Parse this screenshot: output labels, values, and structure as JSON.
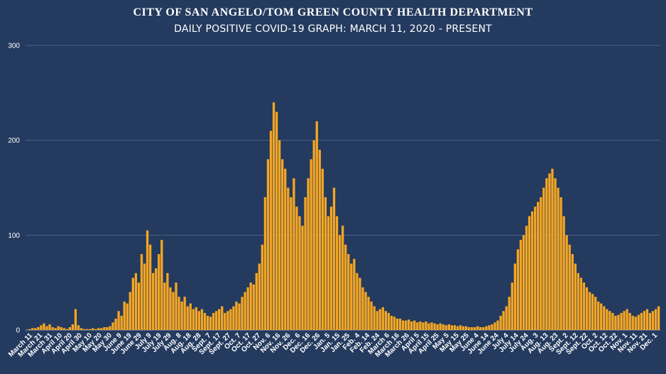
{
  "chart_data": {
    "type": "bar",
    "title": "CITY OF SAN ANGELO/TOM GREEN COUNTY HEALTH DEPARTMENT",
    "subtitle": "DAILY POSITIVE COVID-19 GRAPH: MARCH 11, 2020 - PRESENT",
    "xlabel": "",
    "ylabel": "",
    "ylim": [
      0,
      300
    ],
    "yticks": [
      0,
      100,
      200,
      300
    ],
    "grid": true,
    "x_tick_labels": [
      "March 11",
      "March 21",
      "March 31",
      "April 10",
      "April 20",
      "April 30",
      "May 10",
      "May 20",
      "May 30",
      "June 9",
      "June 19",
      "June 29",
      "July 9",
      "July 19",
      "July 29",
      "Aug. 8",
      "Aug. 18",
      "Aug. 28",
      "Sept. 7",
      "Sept. 17",
      "Sept. 27",
      "Oct. 7",
      "Oct. 17",
      "Oct. 27",
      "Nov. 6",
      "Nov. 16",
      "Nov. 26",
      "Dec. 6",
      "Dec. 16",
      "Dec. 26",
      "Jan. 5",
      "Jan. 15",
      "Jan. 25",
      "Feb. 4",
      "Feb. 14",
      "Feb. 24",
      "March 6",
      "March 16",
      "March 26",
      "April 5",
      "April 15",
      "April 25",
      "May 5",
      "May 15",
      "May 25",
      "June 4",
      "June 14",
      "June 24",
      "July 4",
      "July 14",
      "July 24",
      "Aug. 3",
      "Aug. 13",
      "Aug. 23",
      "Sept. 2",
      "Sept. 12",
      "Sept. 22",
      "Oct. 2",
      "Oct. 12",
      "Oct. 22",
      "Nov. 1",
      "Nov. 11",
      "Nov. 21",
      "Dec. 1"
    ],
    "series": [
      {
        "color": "#f5a623",
        "values": [
          0,
          1,
          2,
          2,
          3,
          5,
          7,
          4,
          6,
          3,
          2,
          4,
          3,
          2,
          1,
          3,
          6,
          22,
          5,
          2,
          1,
          1,
          1,
          2,
          1,
          2,
          2,
          3,
          3,
          4,
          8,
          12,
          20,
          15,
          30,
          28,
          40,
          55,
          60,
          50,
          80,
          70,
          105,
          90,
          60,
          65,
          80,
          95,
          50,
          60,
          45,
          40,
          50,
          35,
          30,
          35,
          25,
          28,
          22,
          24,
          20,
          22,
          18,
          15,
          14,
          18,
          20,
          22,
          25,
          18,
          20,
          22,
          25,
          30,
          28,
          35,
          40,
          45,
          50,
          48,
          60,
          70,
          90,
          140,
          180,
          210,
          240,
          230,
          200,
          180,
          170,
          150,
          140,
          160,
          130,
          120,
          110,
          140,
          160,
          180,
          200,
          220,
          190,
          170,
          140,
          120,
          130,
          150,
          120,
          100,
          110,
          90,
          80,
          70,
          75,
          60,
          55,
          45,
          40,
          35,
          30,
          25,
          20,
          22,
          24,
          20,
          18,
          15,
          14,
          12,
          12,
          10,
          10,
          11,
          9,
          10,
          8,
          9,
          8,
          9,
          7,
          8,
          7,
          6,
          7,
          6,
          5,
          6,
          5,
          5,
          4,
          5,
          4,
          4,
          3,
          3,
          3,
          4,
          3,
          3,
          4,
          5,
          6,
          8,
          10,
          15,
          20,
          25,
          35,
          50,
          70,
          85,
          95,
          100,
          110,
          120,
          125,
          130,
          135,
          140,
          150,
          160,
          165,
          170,
          160,
          150,
          140,
          120,
          100,
          90,
          80,
          70,
          60,
          55,
          50,
          45,
          40,
          38,
          35,
          30,
          28,
          25,
          22,
          20,
          18,
          15,
          16,
          18,
          20,
          22,
          18,
          15,
          14,
          16,
          18,
          20,
          22,
          18,
          20,
          22,
          25
        ]
      }
    ]
  }
}
